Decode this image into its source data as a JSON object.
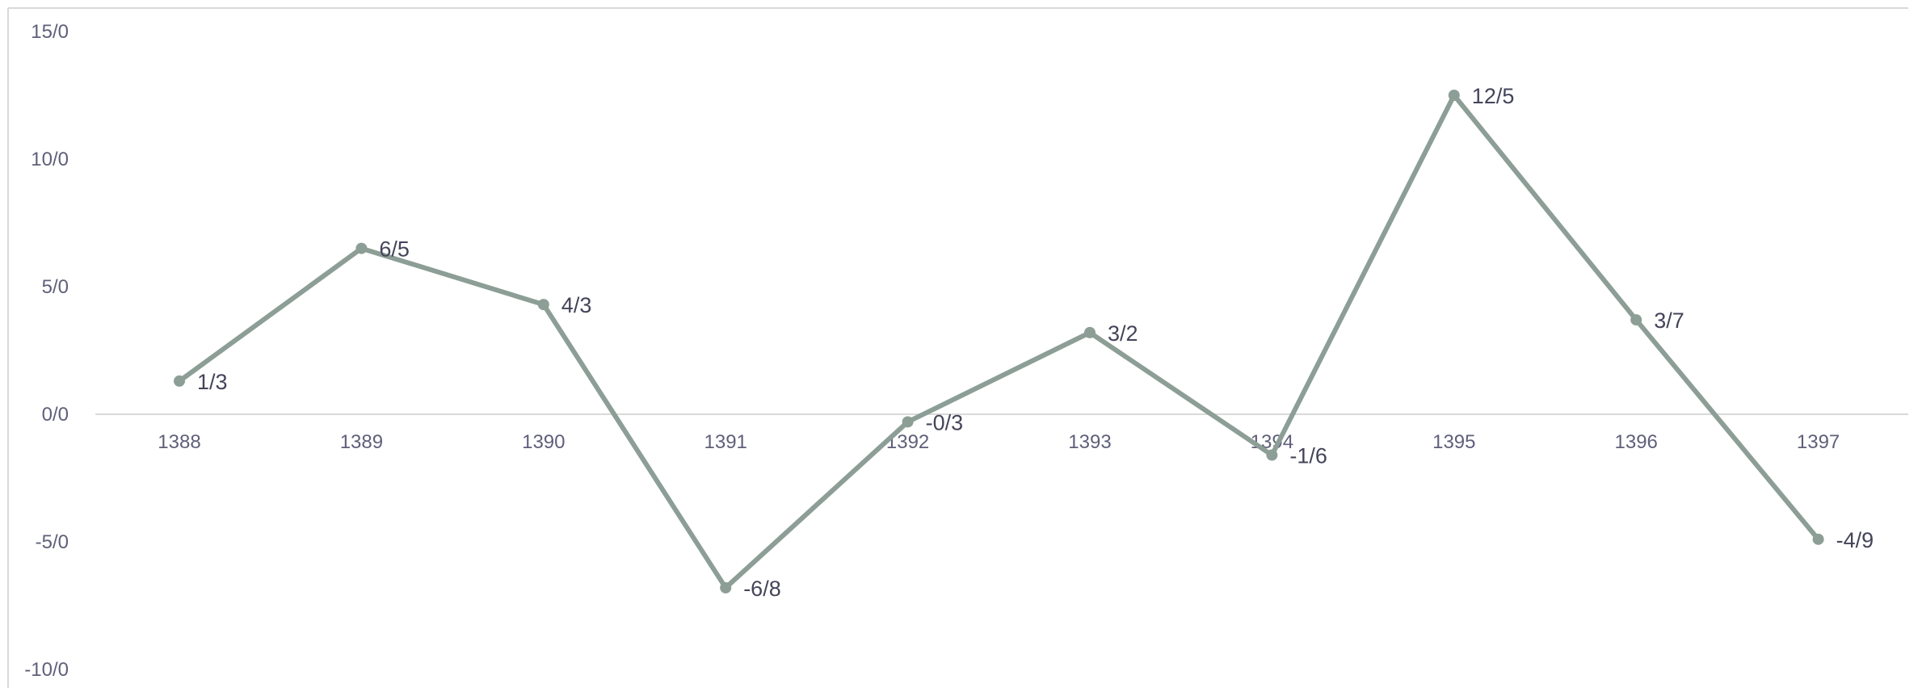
{
  "chart_data": {
    "type": "line",
    "title": "",
    "xlabel": "",
    "ylabel": "",
    "categories": [
      "1388",
      "1389",
      "1390",
      "1391",
      "1392",
      "1393",
      "1394",
      "1395",
      "1396",
      "1397"
    ],
    "series": [
      {
        "values": [
          1.3,
          6.5,
          4.3,
          -6.8,
          -0.3,
          3.2,
          -1.6,
          12.5,
          3.7,
          -4.9
        ],
        "labels": [
          "1/3",
          "6/5",
          "4/3",
          "-6/8",
          "-0/3",
          "3/2",
          "-1/6",
          "12/5",
          "3/7",
          "-4/9"
        ],
        "color": "#8c9e96"
      }
    ],
    "ylim": [
      -10,
      15
    ],
    "yticks": [
      15,
      10,
      5,
      0,
      -5,
      -10
    ],
    "ytick_labels": [
      "15/0",
      "10/0",
      "5/0",
      "0/0",
      "-5/0",
      "-10/0"
    ],
    "grid": false,
    "legend": "none",
    "axis_color": "#d9d9d9",
    "tick_color": "#5f5f7a",
    "label_color": "#44445a"
  }
}
